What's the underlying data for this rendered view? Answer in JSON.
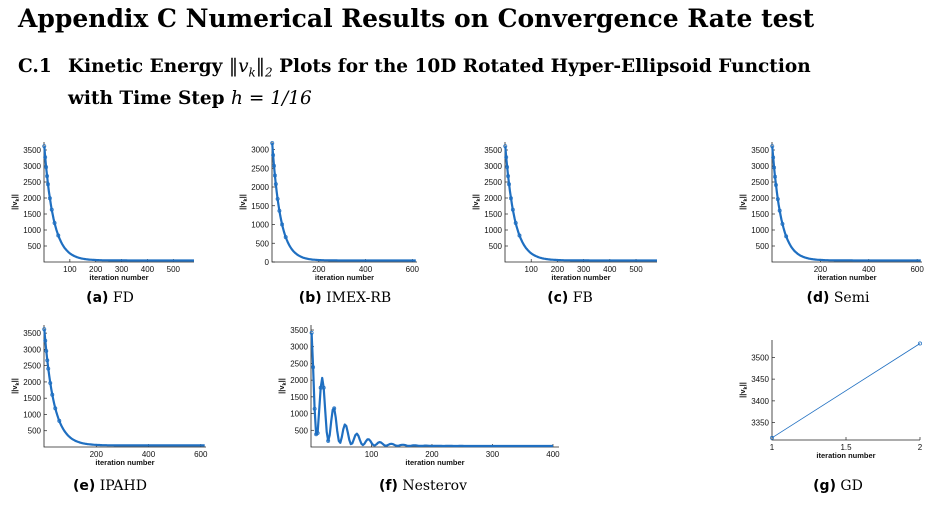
{
  "appendix": {
    "title": "Appendix C    Numerical Results on Convergence Rate test"
  },
  "section": {
    "number": "C.1",
    "line1_a": "Kinetic Energy ",
    "line1_math": "‖v",
    "line1_math_sub": "k",
    "line1_math_end": "‖",
    "line1_math_sub2": "2",
    "line1_b": " Plots for the 10D Rotated Hyper-Ellipsoid Function",
    "line2_a": "with Time Step ",
    "line2_math": "h = 1/16"
  },
  "chart_data": [
    {
      "id": "a",
      "type": "line",
      "caption_label": "(a)",
      "caption_text": "FD",
      "xlabel": "iteration number",
      "ylabel": "||v",
      "ylabel_sub": "k",
      "ylabel_end": "||",
      "xlim": [
        0,
        580
      ],
      "ylim": [
        0,
        3750
      ],
      "xticks": [
        100,
        200,
        300,
        400,
        500
      ],
      "yticks": [
        500,
        1000,
        1500,
        2000,
        2500,
        3000,
        3500
      ],
      "x_end": 580,
      "y0": 3620,
      "y_end": 48,
      "decay": 0.028,
      "oscillation": 0
    },
    {
      "id": "b",
      "type": "line",
      "caption_label": "(b)",
      "caption_text": "IMEX-RB",
      "xlabel": "iteration number",
      "ylabel": "||v",
      "ylabel_sub": "k",
      "ylabel_end": "||",
      "xlim": [
        0,
        620
      ],
      "ylim": [
        0,
        3200
      ],
      "xticks": [
        200,
        400,
        600
      ],
      "yticks": [
        0,
        500,
        1000,
        1500,
        2000,
        2500,
        3000
      ],
      "x_end": 615,
      "y0": 3170,
      "y_end": 40,
      "decay": 0.028,
      "oscillation": 0
    },
    {
      "id": "c",
      "type": "line",
      "caption_label": "(c)",
      "caption_text": "FB",
      "xlabel": "iteration number",
      "ylabel": "||v",
      "ylabel_sub": "k",
      "ylabel_end": "||",
      "xlim": [
        0,
        580
      ],
      "ylim": [
        0,
        3750
      ],
      "xticks": [
        100,
        200,
        300,
        400,
        500
      ],
      "yticks": [
        500,
        1000,
        1500,
        2000,
        2500,
        3000,
        3500
      ],
      "x_end": 580,
      "y0": 3620,
      "y_end": 48,
      "decay": 0.028,
      "oscillation": 0
    },
    {
      "id": "d",
      "type": "line",
      "caption_label": "(d)",
      "caption_text": "Semi",
      "xlabel": "iteration number",
      "ylabel": "||v",
      "ylabel_sub": "k",
      "ylabel_end": "||",
      "xlim": [
        0,
        620
      ],
      "ylim": [
        0,
        3750
      ],
      "xticks": [
        200,
        400,
        600
      ],
      "yticks": [
        500,
        1000,
        1500,
        2000,
        2500,
        3000,
        3500
      ],
      "x_end": 615,
      "y0": 3620,
      "y_end": 48,
      "decay": 0.027,
      "oscillation": 0
    },
    {
      "id": "e",
      "type": "line",
      "caption_label": "(e)",
      "caption_text": "IPAHD",
      "xlabel": "iteration number",
      "ylabel": "||v",
      "ylabel_sub": "k",
      "ylabel_end": "||",
      "xlim": [
        0,
        620
      ],
      "ylim": [
        0,
        3750
      ],
      "xticks": [
        200,
        400,
        600
      ],
      "yticks": [
        500,
        1000,
        1500,
        2000,
        2500,
        3000,
        3500
      ],
      "x_end": 615,
      "y0": 3620,
      "y_end": 48,
      "decay": 0.027,
      "oscillation": 0
    },
    {
      "id": "f",
      "type": "line",
      "caption_label": "(f)",
      "caption_text": "Nesterov",
      "xlabel": "iteration number",
      "ylabel": "||v",
      "ylabel_sub": "k",
      "ylabel_end": "||",
      "xlim": [
        0,
        410
      ],
      "ylim": [
        0,
        3650
      ],
      "xticks": [
        100,
        200,
        300,
        400
      ],
      "yticks": [
        500,
        1000,
        1500,
        2000,
        2500,
        3000,
        3500
      ],
      "x_end": 400,
      "y0": 3500,
      "y_end": 30,
      "decay": 0.035,
      "oscillation": 1
    },
    {
      "id": "g",
      "type": "line",
      "caption_label": "(g)",
      "caption_text": "GD",
      "xlabel": "iteration number",
      "ylabel": "||v",
      "ylabel_sub": "k",
      "ylabel_end": "||",
      "xlim": [
        1,
        2
      ],
      "ylim": [
        3310,
        3540
      ],
      "xticks": [
        1,
        1.5,
        2
      ],
      "yticks": [
        3350,
        3400,
        3450,
        3500
      ],
      "xtick_labels": [
        "1",
        "1.5",
        "2"
      ],
      "points": [
        [
          1,
          3315
        ],
        [
          2,
          3532
        ]
      ]
    }
  ]
}
